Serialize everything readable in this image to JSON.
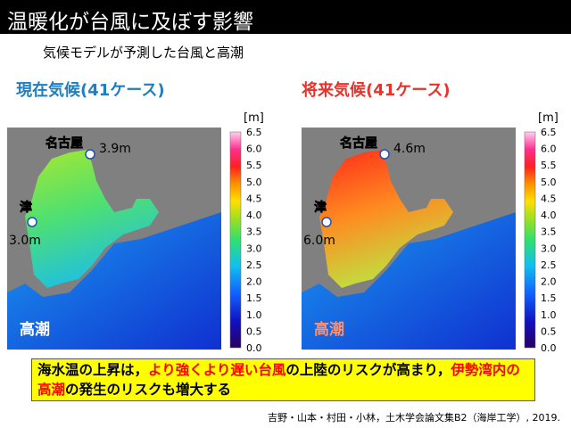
{
  "header": {
    "title": "温暖化が台風に及ぼす影響"
  },
  "subtitle": "気候モデルが予測した台風と高潮",
  "panels": [
    {
      "heading": "現在気候(41ケース)",
      "unit": "[m]",
      "city_a": "名古屋",
      "value_a": "3.9m",
      "city_b": "津",
      "value_b": "3.0m",
      "label": "高潮"
    },
    {
      "heading": "将来気候(41ケース)",
      "unit": "[m]",
      "city_a": "名古屋",
      "value_a": "4.6m",
      "city_b": "津",
      "value_b": "6.0m",
      "label": "高潮"
    }
  ],
  "colorbar_ticks": [
    "0.0",
    "0.5",
    "1.0",
    "1.5",
    "2.0",
    "2.5",
    "3.0",
    "3.5",
    "4.0",
    "4.5",
    "5.0",
    "5.5",
    "6.0",
    "6.5"
  ],
  "callout": {
    "segments": [
      {
        "text": "海水温の上昇は，",
        "highlight": false
      },
      {
        "text": "より強くより遅い台風",
        "highlight": true
      },
      {
        "text": "の上陸のリスクが高まり，",
        "highlight": false
      },
      {
        "text": "伊勢湾内の高潮",
        "highlight": true
      },
      {
        "text": "の発生のリスクも増大する",
        "highlight": false
      }
    ]
  },
  "citation": "吉野・山本・村田・小林，土木学会論文集B2（海岸工学）, 2019."
}
